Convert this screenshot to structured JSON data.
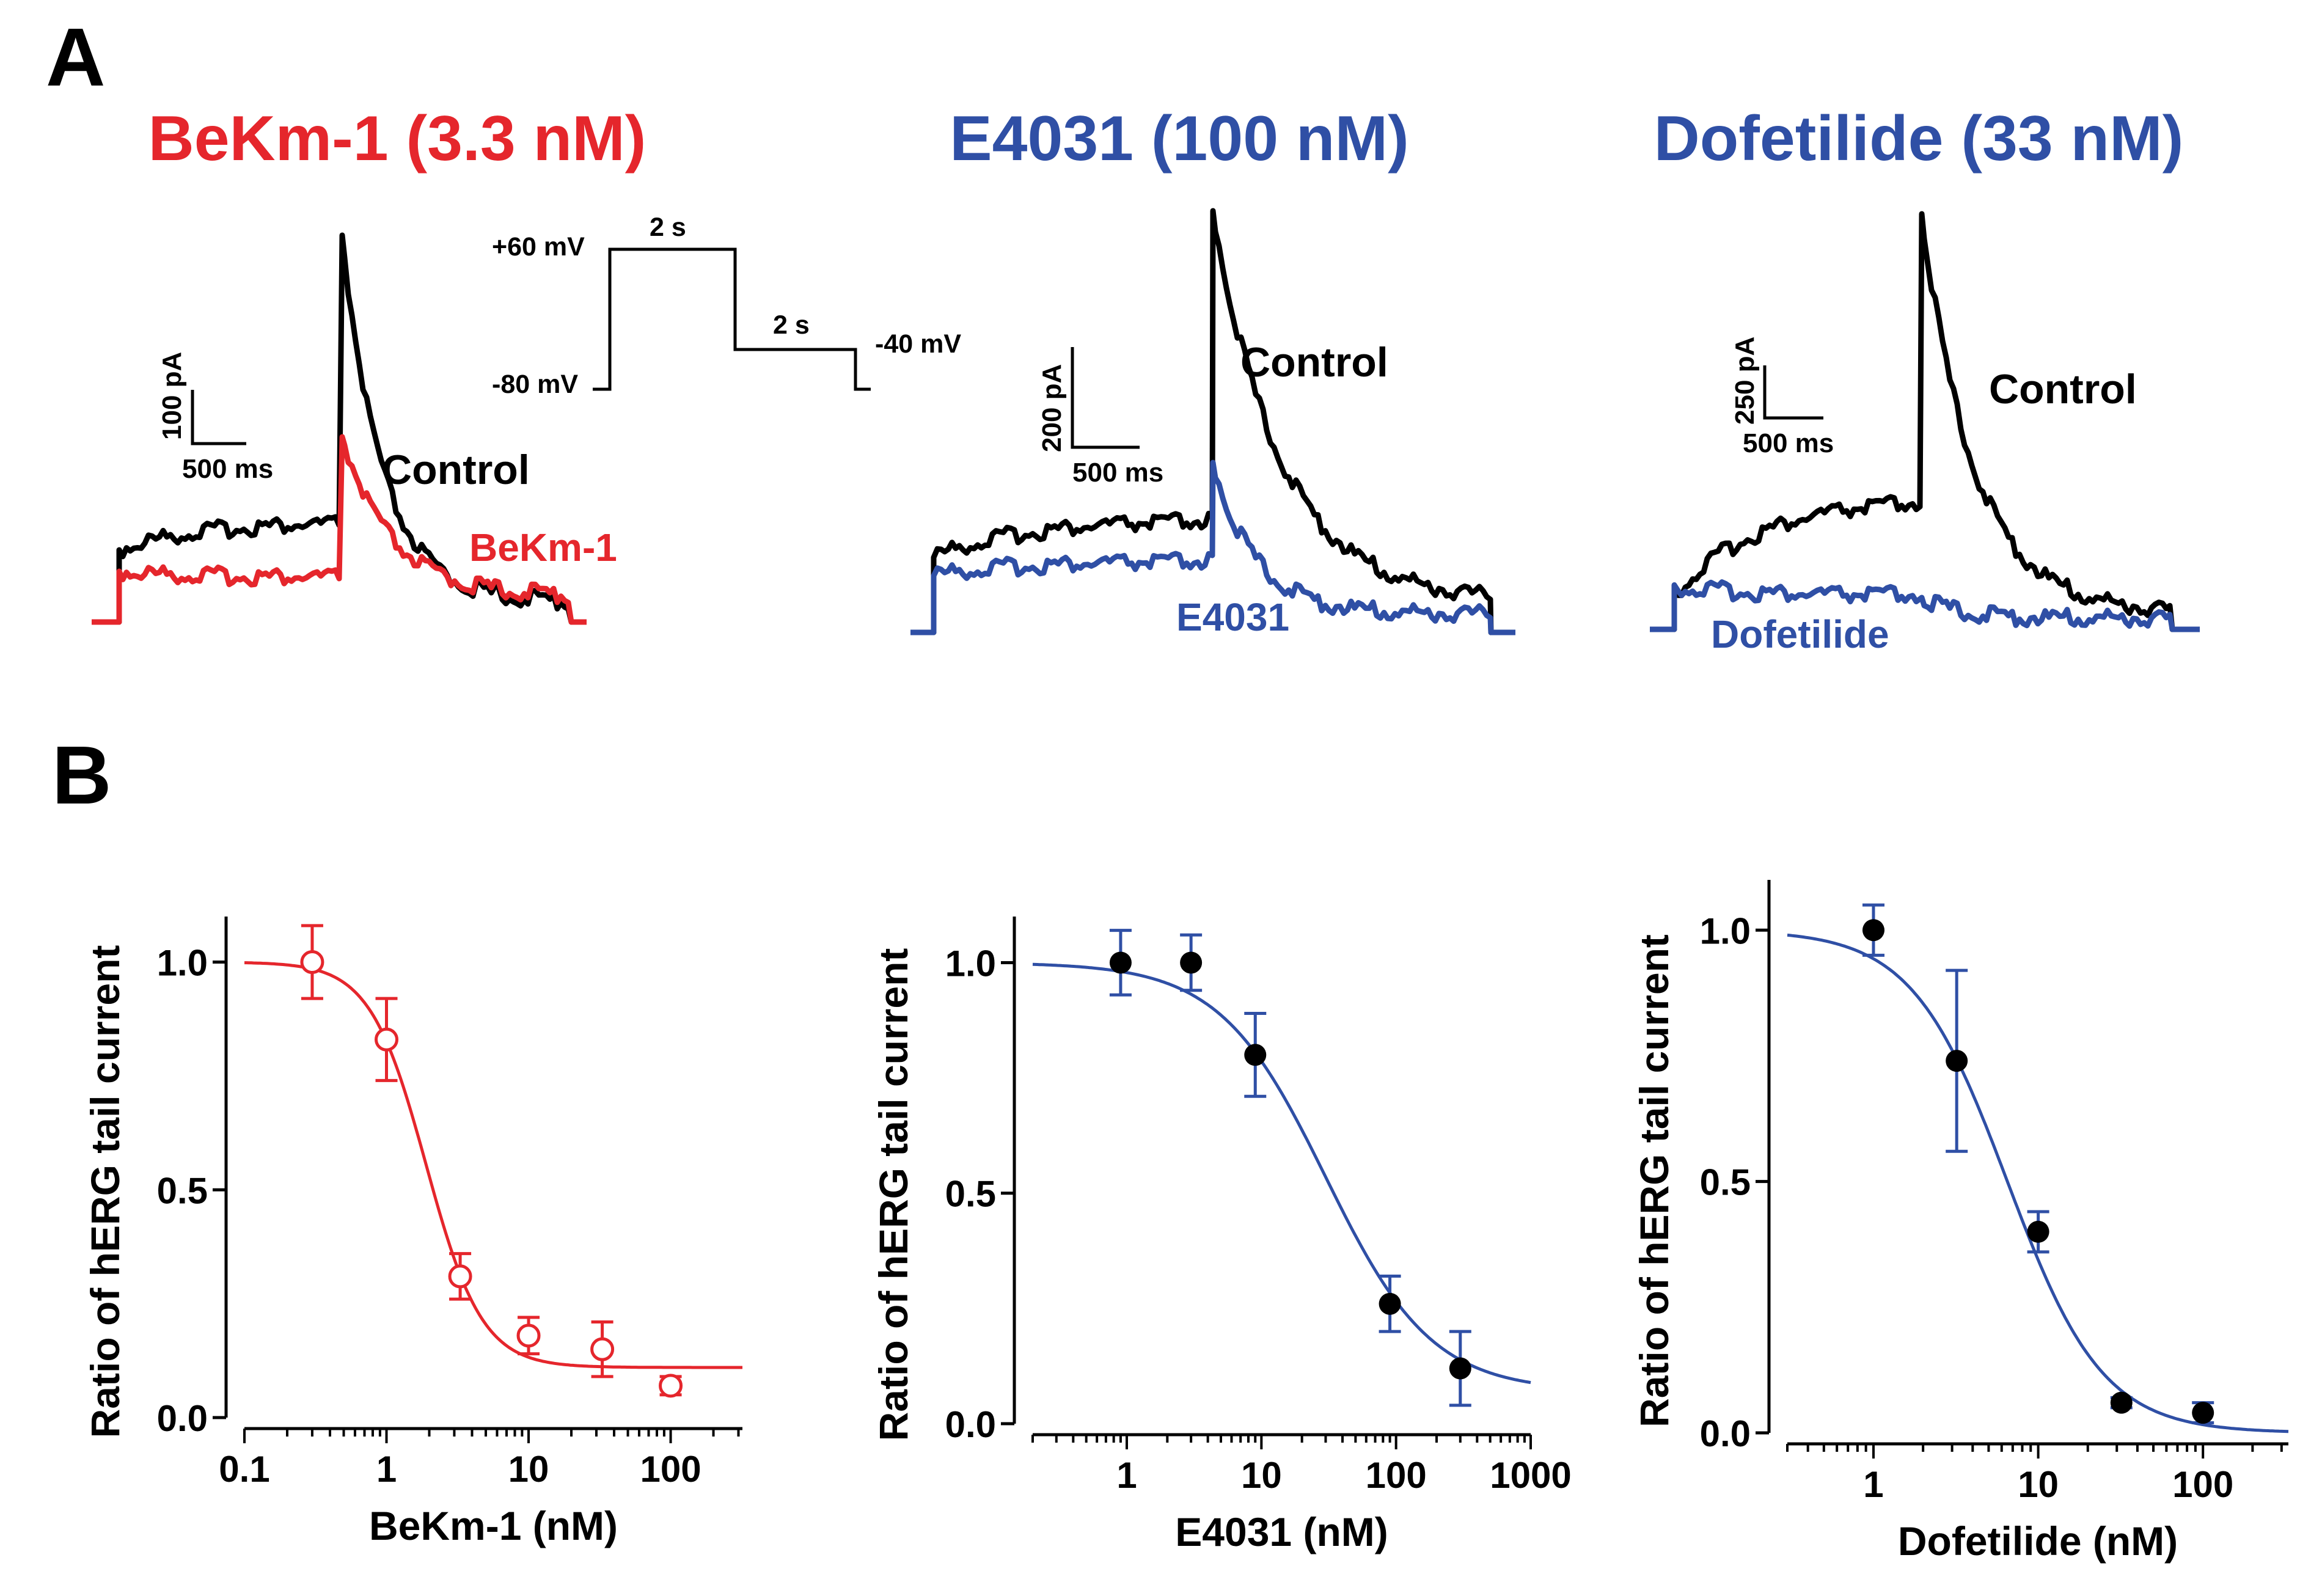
{
  "panel_labels": {
    "a": "A",
    "b": "B"
  },
  "colors": {
    "red": "#e5262c",
    "blue": "#2f4fa5",
    "black": "#000000"
  },
  "traces": [
    {
      "title": "BeKm-1 (3.3 nM)",
      "title_color": "#e5262c",
      "control_label": "Control",
      "drug_label": "BeKm-1",
      "drug_color": "#e5262c",
      "scale_current": "100 pA",
      "scale_time": "500 ms",
      "protocol": {
        "v_hold": "-80 mV",
        "v_step": "+60 mV",
        "v_tail": "-40 mV",
        "t_step": "2 s",
        "t_tail": "2 s"
      }
    },
    {
      "title": "E4031 (100 nM)",
      "title_color": "#2f4fa5",
      "control_label": "Control",
      "drug_label": "E4031",
      "drug_color": "#2f4fa5",
      "scale_current": "200 pA",
      "scale_time": "500 ms"
    },
    {
      "title": "Dofetilide (33 nM)",
      "title_color": "#2f4fa5",
      "control_label": "Control",
      "drug_label": "Dofetilide",
      "drug_color": "#2f4fa5",
      "scale_current": "250 pA",
      "scale_time": "500 ms"
    }
  ],
  "chart_data": [
    {
      "type": "scatter",
      "title": "",
      "xlabel": "BeKm-1 (nM)",
      "ylabel": "Ratio of hERG tail current",
      "xscale": "log",
      "xlim": [
        0.1,
        320
      ],
      "ylim": [
        0,
        1.1
      ],
      "xticks": [
        0.1,
        1,
        10,
        100
      ],
      "xtick_labels": [
        "0.1",
        "1",
        "10",
        "100"
      ],
      "yticks": [
        0,
        0.5,
        1.0
      ],
      "ytick_labels": [
        "0.0",
        "0.5",
        "1.0"
      ],
      "marker": "open-circle",
      "color": "#e5262c",
      "x": [
        0.3,
        1,
        3.3,
        10,
        33,
        100
      ],
      "y": [
        1.0,
        0.83,
        0.31,
        0.18,
        0.15,
        0.07
      ],
      "err": [
        0.08,
        0.09,
        0.05,
        0.04,
        0.06,
        0.02
      ],
      "fit": {
        "model": "hill",
        "top": 1.0,
        "bottom": 0.11,
        "ic50": 1.9,
        "hill": 2.2
      }
    },
    {
      "type": "scatter",
      "title": "",
      "xlabel": "E4031 (nM)",
      "ylabel": "Ratio of hERG tail current",
      "xscale": "log",
      "xlim": [
        0.2,
        1000
      ],
      "ylim": [
        0,
        1.1
      ],
      "xticks": [
        1,
        10,
        100,
        1000
      ],
      "xtick_labels": [
        "1",
        "10",
        "100",
        "1000"
      ],
      "yticks": [
        0,
        0.5,
        1.0
      ],
      "ytick_labels": [
        "0.0",
        "0.5",
        "1.0"
      ],
      "marker": "filled-circle",
      "color": "#2f4fa5",
      "x": [
        0.9,
        3,
        9,
        90,
        300
      ],
      "y": [
        1.0,
        1.0,
        0.8,
        0.26,
        0.12
      ],
      "err": [
        0.07,
        0.06,
        0.09,
        0.06,
        0.08
      ],
      "fit": {
        "model": "hill",
        "top": 1.0,
        "bottom": 0.07,
        "ic50": 30,
        "hill": 1.1
      }
    },
    {
      "type": "scatter",
      "title": "",
      "xlabel": "Dofetilide (nM)",
      "ylabel": "Ratio of hERG tail current",
      "xscale": "log",
      "xlim": [
        0.3,
        330
      ],
      "ylim": [
        0,
        1.1
      ],
      "xticks": [
        1,
        10,
        100
      ],
      "xtick_labels": [
        "1",
        "10",
        "100"
      ],
      "yticks": [
        0,
        0.5,
        1.0
      ],
      "ytick_labels": [
        "0.0",
        "0.5",
        "1.0"
      ],
      "marker": "filled-circle",
      "color": "#2f4fa5",
      "x": [
        1,
        3.2,
        10,
        32,
        100
      ],
      "y": [
        1.0,
        0.74,
        0.4,
        0.06,
        0.04
      ],
      "err": [
        0.05,
        0.18,
        0.04,
        0.01,
        0.02
      ],
      "fit": {
        "model": "hill",
        "top": 1.0,
        "bottom": 0.0,
        "ic50": 6.5,
        "hill": 1.5
      }
    }
  ]
}
